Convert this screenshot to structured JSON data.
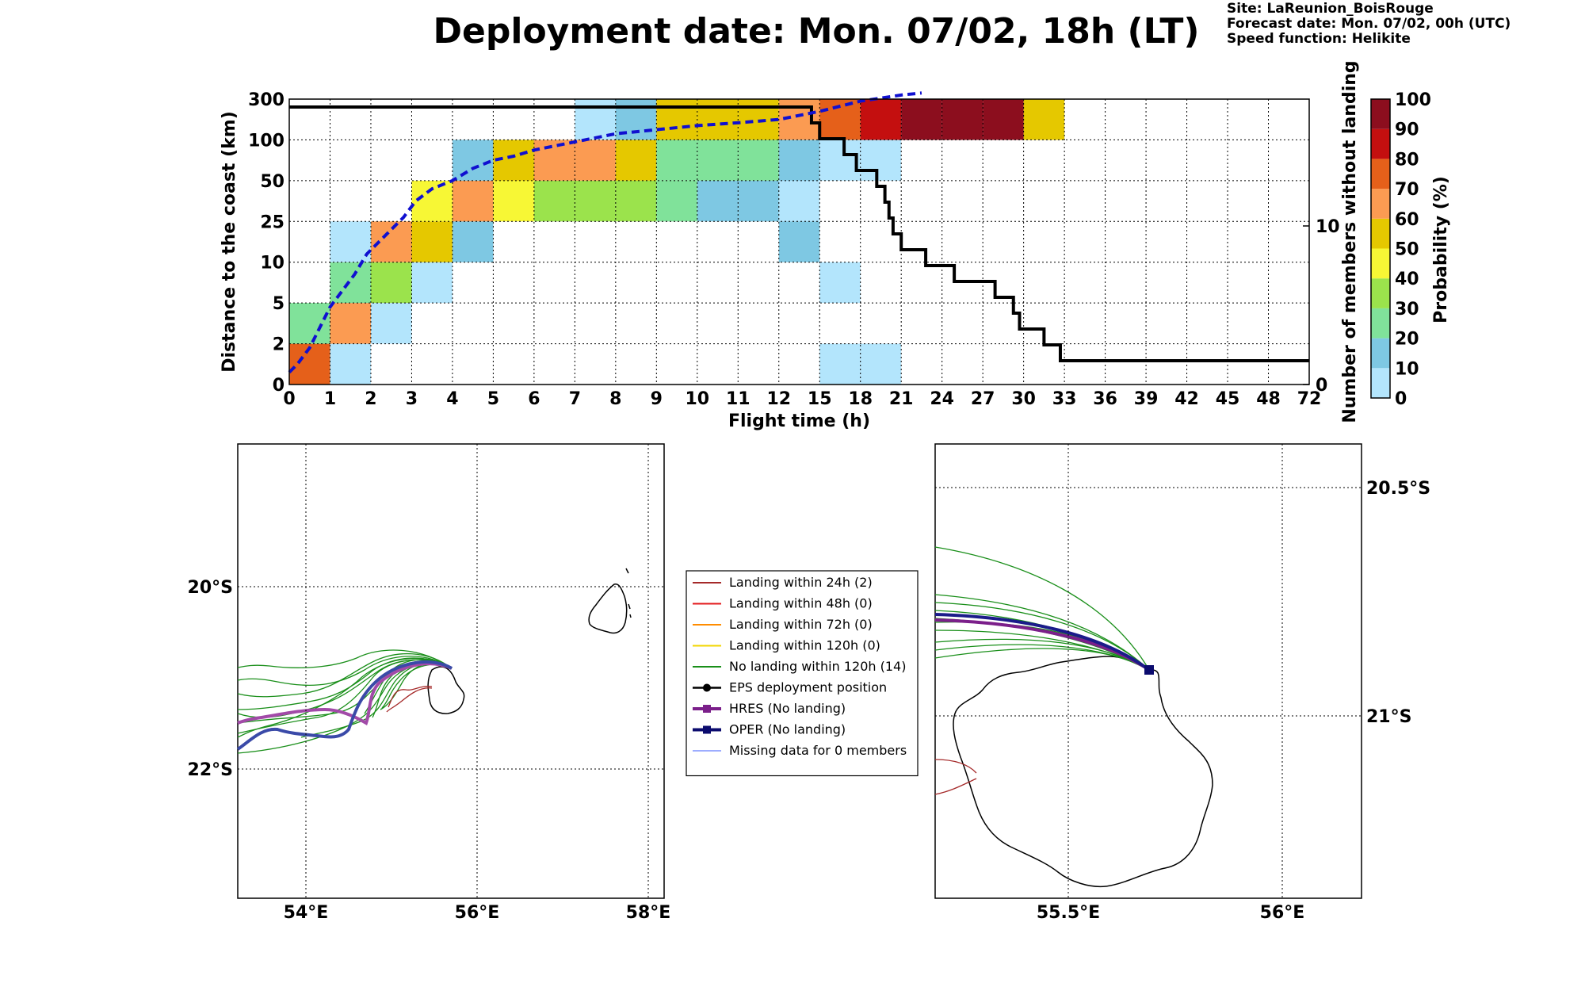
{
  "header": {
    "title": "Deployment date: Mon. 07/02, 18h (LT)",
    "site": "Site: LaReunion_BoisRouge",
    "forecast": "Forecast date: Mon. 07/02, 00h (UTC)",
    "speed": "Speed function: Helikite"
  },
  "chart_data": [
    {
      "type": "heatmap",
      "xlabel": "Flight time (h)",
      "ylabel": "Distance to the coast (km)",
      "y2label": "Number of members without landing",
      "x_ticks": [
        "0",
        "1",
        "2",
        "3",
        "4",
        "5",
        "6",
        "7",
        "8",
        "9",
        "10",
        "11",
        "12",
        "15",
        "18",
        "21",
        "24",
        "27",
        "30",
        "33",
        "36",
        "39",
        "42",
        "45",
        "48",
        "72"
      ],
      "y_ticks": [
        "0",
        "2",
        "5",
        "10",
        "25",
        "50",
        "100",
        "300"
      ],
      "y2_ticks": [
        {
          "label": "0",
          "value": 0
        },
        {
          "label": "10",
          "value": 10
        }
      ],
      "y2_range": [
        0,
        18
      ],
      "colorbar": {
        "label": "Probability (%)",
        "ticks": [
          "0",
          "10",
          "20",
          "30",
          "40",
          "50",
          "60",
          "70",
          "80",
          "90",
          "100"
        ],
        "colors": [
          "#b3e5fc",
          "#7ec8e3",
          "#80e29a",
          "#9be34c",
          "#f7f735",
          "#e5c800",
          "#fb9b52",
          "#e5601a",
          "#c40f0f",
          "#8c0e1e"
        ]
      },
      "cells": [
        {
          "x": 0,
          "y": 0,
          "p": 75
        },
        {
          "x": 1,
          "y": 0,
          "p": 5
        },
        {
          "x": 0,
          "y": 1,
          "p": 25
        },
        {
          "x": 1,
          "y": 1,
          "p": 65
        },
        {
          "x": 2,
          "y": 1,
          "p": 5
        },
        {
          "x": 1,
          "y": 2,
          "p": 25
        },
        {
          "x": 2,
          "y": 2,
          "p": 35
        },
        {
          "x": 3,
          "y": 2,
          "p": 5
        },
        {
          "x": 1,
          "y": 3,
          "p": 5
        },
        {
          "x": 2,
          "y": 3,
          "p": 65
        },
        {
          "x": 3,
          "y": 3,
          "p": 55
        },
        {
          "x": 4,
          "y": 3,
          "p": 15
        },
        {
          "x": 3,
          "y": 4,
          "p": 45
        },
        {
          "x": 4,
          "y": 4,
          "p": 65
        },
        {
          "x": 5,
          "y": 4,
          "p": 45
        },
        {
          "x": 6,
          "y": 4,
          "p": 35
        },
        {
          "x": 7,
          "y": 4,
          "p": 35
        },
        {
          "x": 8,
          "y": 4,
          "p": 35
        },
        {
          "x": 9,
          "y": 4,
          "p": 25
        },
        {
          "x": 10,
          "y": 4,
          "p": 15
        },
        {
          "x": 11,
          "y": 4,
          "p": 15
        },
        {
          "x": 12,
          "y": 4,
          "p": 5
        },
        {
          "x": 4,
          "y": 5,
          "p": 15
        },
        {
          "x": 5,
          "y": 5,
          "p": 55
        },
        {
          "x": 6,
          "y": 5,
          "p": 65
        },
        {
          "x": 7,
          "y": 5,
          "p": 65
        },
        {
          "x": 8,
          "y": 5,
          "p": 55
        },
        {
          "x": 9,
          "y": 5,
          "p": 25
        },
        {
          "x": 10,
          "y": 5,
          "p": 25
        },
        {
          "x": 11,
          "y": 5,
          "p": 25
        },
        {
          "x": 12,
          "y": 5,
          "p": 15
        },
        {
          "x": 13,
          "y": 5,
          "p": 5
        },
        {
          "x": 14,
          "y": 5,
          "p": 5
        },
        {
          "x": 7,
          "y": 6,
          "p": 5
        },
        {
          "x": 8,
          "y": 6,
          "p": 15
        },
        {
          "x": 9,
          "y": 6,
          "p": 55
        },
        {
          "x": 10,
          "y": 6,
          "p": 55
        },
        {
          "x": 11,
          "y": 6,
          "p": 55
        },
        {
          "x": 12,
          "y": 6,
          "p": 65
        },
        {
          "x": 13,
          "y": 6,
          "p": 75
        },
        {
          "x": 14,
          "y": 6,
          "p": 85
        },
        {
          "x": 15,
          "y": 6,
          "p": 95
        },
        {
          "x": 16,
          "y": 6,
          "p": 95
        },
        {
          "x": 17,
          "y": 6,
          "p": 95
        },
        {
          "x": 18,
          "y": 6,
          "p": 55
        },
        {
          "x": 12,
          "y": 3,
          "p": 15
        },
        {
          "x": 13,
          "y": 2,
          "p": 5
        },
        {
          "x": 13,
          "y": 0,
          "p": 5
        },
        {
          "x": 14,
          "y": 0,
          "p": 5
        }
      ],
      "median_line": [
        [
          0,
          0.3
        ],
        [
          0.2,
          0.5
        ],
        [
          0.5,
          0.9
        ],
        [
          0.8,
          1.5
        ],
        [
          1.0,
          1.9
        ],
        [
          1.3,
          2.3
        ],
        [
          1.6,
          2.7
        ],
        [
          1.9,
          3.2
        ],
        [
          2.1,
          3.4
        ],
        [
          2.4,
          3.7
        ],
        [
          2.8,
          4.1
        ],
        [
          3.1,
          4.5
        ],
        [
          3.5,
          4.8
        ],
        [
          4.0,
          5.0
        ],
        [
          4.5,
          5.3
        ],
        [
          5.0,
          5.5
        ],
        [
          5.5,
          5.6
        ],
        [
          6.0,
          5.75
        ],
        [
          6.5,
          5.85
        ],
        [
          7.0,
          5.95
        ],
        [
          8.0,
          6.15
        ],
        [
          9.0,
          6.25
        ],
        [
          10.0,
          6.35
        ],
        [
          11.0,
          6.42
        ],
        [
          12.0,
          6.5
        ],
        [
          13.0,
          6.7
        ],
        [
          14.0,
          6.95
        ],
        [
          15.0,
          7.1
        ],
        [
          15.5,
          7.15
        ]
      ],
      "members_step": [
        [
          0,
          17.5
        ],
        [
          12.8,
          17.5
        ],
        [
          12.8,
          16.5
        ],
        [
          13.0,
          16.5
        ],
        [
          13.0,
          15.5
        ],
        [
          13.6,
          15.5
        ],
        [
          13.6,
          14.5
        ],
        [
          13.9,
          14.5
        ],
        [
          13.9,
          13.5
        ],
        [
          14.4,
          13.5
        ],
        [
          14.4,
          12.5
        ],
        [
          14.6,
          12.5
        ],
        [
          14.6,
          11.5
        ],
        [
          14.7,
          11.5
        ],
        [
          14.7,
          10.5
        ],
        [
          14.8,
          10.5
        ],
        [
          14.8,
          9.5
        ],
        [
          15.0,
          9.5
        ],
        [
          15.0,
          8.5
        ],
        [
          15.6,
          8.5
        ],
        [
          15.6,
          7.5
        ],
        [
          16.3,
          7.5
        ],
        [
          16.3,
          6.5
        ],
        [
          17.3,
          6.5
        ],
        [
          17.3,
          5.5
        ],
        [
          17.75,
          5.5
        ],
        [
          17.75,
          4.5
        ],
        [
          17.9,
          4.5
        ],
        [
          17.9,
          3.5
        ],
        [
          18.5,
          3.5
        ],
        [
          18.5,
          2.5
        ],
        [
          18.9,
          2.5
        ],
        [
          18.9,
          1.5
        ],
        [
          25,
          1.5
        ]
      ]
    },
    {
      "type": "map",
      "lon_ticks": [
        "54°E",
        "56°E",
        "58°E"
      ],
      "lat_ticks": [
        "20°S",
        "22°S"
      ],
      "lon_range": [
        53.2,
        58.2
      ],
      "lat_range": [
        -23.5,
        -18.4
      ]
    },
    {
      "type": "map",
      "lon_ticks": [
        "55.5°E",
        "56°E"
      ],
      "lat_ticks": [
        "20.5°S",
        "21°S"
      ],
      "lon_range": [
        55.2,
        56.2
      ],
      "lat_range": [
        -21.4,
        -20.4
      ]
    }
  ],
  "legend": {
    "items": [
      {
        "label": "Landing within 24h (2)",
        "color": "#a52a2a",
        "kind": "line"
      },
      {
        "label": "Landing within 48h (0)",
        "color": "#e31a1c",
        "kind": "line"
      },
      {
        "label": "Landing within 72h (0)",
        "color": "#ff8c00",
        "kind": "line"
      },
      {
        "label": "Landing within 120h (0)",
        "color": "#f2d600",
        "kind": "line"
      },
      {
        "label": "No landing within 120h (14)",
        "color": "#1a8f1a",
        "kind": "line"
      },
      {
        "label": "EPS deployment position",
        "color": "#000000",
        "kind": "dot"
      },
      {
        "label": "HRES (No landing)",
        "color": "#7b1f8a",
        "kind": "square"
      },
      {
        "label": "OPER (No landing)",
        "color": "#0b0b6e",
        "kind": "square"
      },
      {
        "label": "Missing data for 0 members",
        "color": "#3b5bff",
        "kind": "thin"
      }
    ]
  }
}
